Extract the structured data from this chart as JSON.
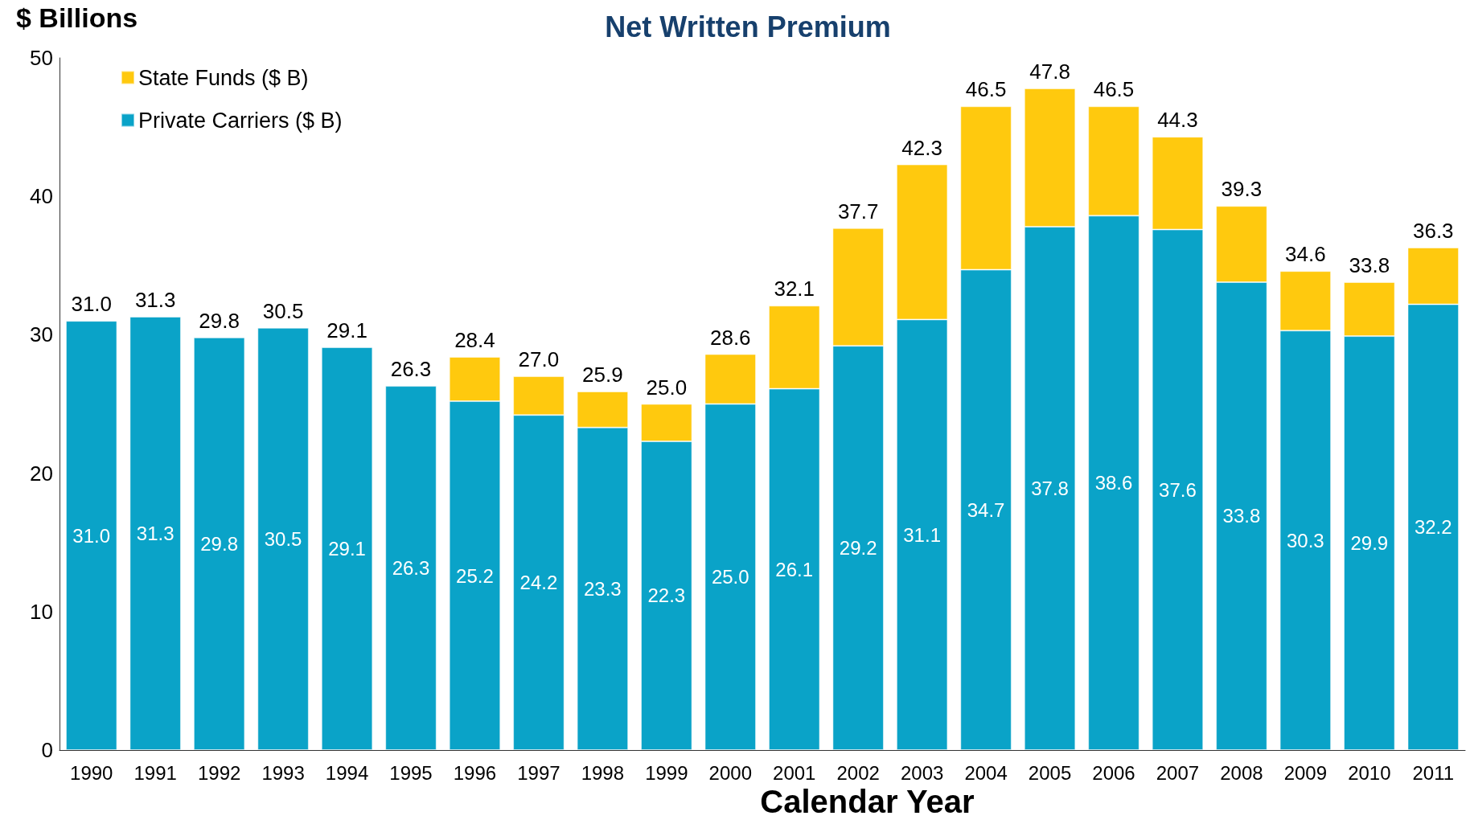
{
  "chart_data": {
    "type": "bar",
    "title": "Net Written Premium",
    "ylabel": "$ Billions",
    "xlabel": "Calendar Year",
    "stacked": true,
    "legend": "top left",
    "grid": false,
    "categories": [
      "1990",
      "1991",
      "1992",
      "1993",
      "1994",
      "1995",
      "1996",
      "1997",
      "1998",
      "1999",
      "2000",
      "2001",
      "2002",
      "2003",
      "2004",
      "2005",
      "2006",
      "2007",
      "2008",
      "2009",
      "2010",
      "2011"
    ],
    "series": [
      {
        "name": "Private Carriers ($ B)",
        "color": "#0aa3c8",
        "values": [
          31.0,
          31.3,
          29.8,
          30.5,
          29.1,
          26.3,
          25.2,
          24.2,
          23.3,
          22.3,
          25.0,
          26.1,
          29.2,
          31.1,
          34.7,
          37.8,
          38.6,
          37.6,
          33.8,
          30.3,
          29.9,
          32.2
        ],
        "value_labels": [
          "31.0",
          "31.3",
          "29.8",
          "30.5",
          "29.1",
          "26.3",
          "25.2",
          "24.2",
          "23.3",
          "22.3",
          "25.0",
          "26.1",
          "29.2",
          "31.1",
          "34.7",
          "37.8",
          "38.6",
          "37.6",
          "33.8",
          "30.3",
          "29.9",
          "32.2"
        ]
      },
      {
        "name": "State Funds ($ B)",
        "color": "#ffc90e",
        "values": [
          null,
          null,
          null,
          null,
          null,
          null,
          3.2,
          2.8,
          2.6,
          2.7,
          3.6,
          6.0,
          8.5,
          11.2,
          11.8,
          10.0,
          7.9,
          6.7,
          5.5,
          4.3,
          3.9,
          4.1
        ]
      }
    ],
    "totals": [
      "31.0",
      "31.3",
      "29.8",
      "30.5",
      "29.1",
      "26.3",
      "28.4",
      "27.0",
      "25.9",
      "25.0",
      "28.6",
      "32.1",
      "37.7",
      "42.3",
      "46.5",
      "47.8",
      "46.5",
      "44.3",
      "39.3",
      "34.6",
      "33.8",
      "36.3"
    ],
    "ylim": [
      0,
      50
    ],
    "yticks": [
      0,
      10,
      20,
      30,
      40,
      50
    ]
  }
}
